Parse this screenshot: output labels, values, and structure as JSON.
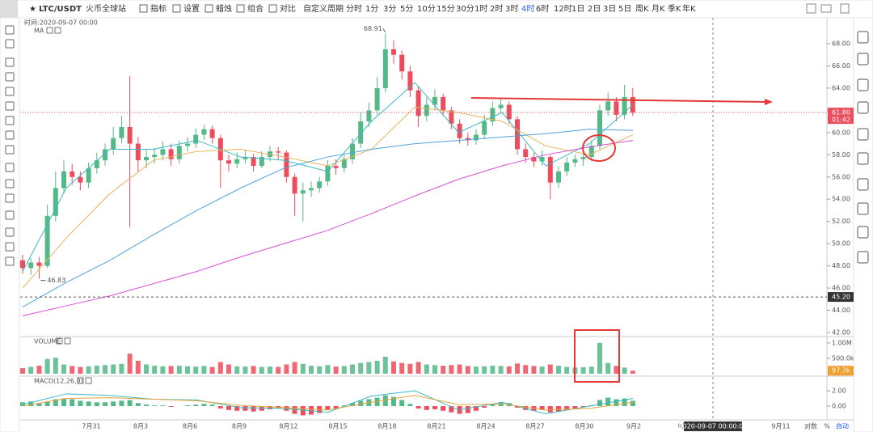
{
  "toolbar": {
    "symbol": "LTC/USDT",
    "exchange": "火币全球站",
    "buttons": [
      "指标",
      "设置",
      "蜡烛",
      "组合",
      "对比"
    ],
    "custom": "自定义周期",
    "periods": [
      "分时",
      "1分",
      "3分",
      "5分",
      "10分",
      "15分",
      "30分",
      "1时",
      "2时",
      "3时",
      "4时",
      "6时",
      "12时",
      "1日",
      "2日",
      "3日",
      "5日",
      "周K",
      "月K",
      "季K",
      "年K"
    ],
    "active_period": 10
  },
  "chart_data": [
    {
      "type": "candlestick",
      "crosshair_time": "时间:2020-09-07 00:00",
      "title": "MA",
      "ylim": [
        41.71,
        70.33
      ],
      "yticks": [
        {
          "value": 42,
          "label": "42.00"
        },
        {
          "value": 44,
          "label": "44.00"
        },
        {
          "value": 46,
          "label": "46.00"
        },
        {
          "value": 48,
          "label": "48.00"
        },
        {
          "value": 50,
          "label": "50.00"
        },
        {
          "value": 52,
          "label": "52.00"
        },
        {
          "value": 54,
          "label": "54.00"
        },
        {
          "value": 56,
          "label": "56.00"
        },
        {
          "value": 58,
          "label": "58.00"
        },
        {
          "value": 60,
          "label": "60.00"
        },
        {
          "value": 62,
          "label": "62.00"
        },
        {
          "value": 64,
          "label": "64.00"
        },
        {
          "value": 66,
          "label": "66.00"
        },
        {
          "value": 68,
          "label": "68.00"
        }
      ],
      "up_color": "#53b987",
      "down_color": "#eb4d5c",
      "ohlc": [
        [
          48.5,
          49.0,
          47.3,
          47.8
        ],
        [
          47.8,
          48.7,
          47.2,
          48.3
        ],
        [
          48.3,
          48.8,
          46.83,
          48.0
        ],
        [
          48.0,
          53.5,
          47.8,
          52.5
        ],
        [
          52.5,
          56.5,
          52.0,
          55.0
        ],
        [
          55.0,
          57.5,
          54.5,
          56.5
        ],
        [
          56.5,
          57.2,
          55.3,
          56.0
        ],
        [
          56.0,
          56.5,
          54.8,
          55.5
        ],
        [
          55.5,
          57.3,
          55.0,
          56.8
        ],
        [
          56.8,
          58.2,
          56.3,
          57.5
        ],
        [
          57.5,
          59.0,
          57.0,
          58.5
        ],
        [
          58.5,
          60.5,
          58.0,
          59.5
        ],
        [
          59.5,
          61.5,
          59.0,
          60.5
        ],
        [
          60.5,
          65.1,
          51.5,
          59.0
        ],
        [
          59.0,
          59.6,
          56.5,
          57.5
        ],
        [
          57.5,
          58.5,
          56.8,
          57.8
        ],
        [
          57.8,
          58.6,
          57.2,
          58.0
        ],
        [
          58.0,
          59.2,
          57.5,
          58.5
        ],
        [
          58.5,
          59.0,
          57.0,
          57.6
        ],
        [
          57.6,
          59.3,
          57.2,
          58.8
        ],
        [
          58.8,
          59.6,
          58.3,
          59.0
        ],
        [
          59.0,
          60.4,
          58.6,
          59.8
        ],
        [
          59.8,
          60.7,
          59.3,
          60.3
        ],
        [
          60.3,
          60.6,
          59.0,
          59.5
        ],
        [
          59.5,
          59.8,
          55.0,
          57.5
        ],
        [
          57.5,
          58.0,
          56.5,
          57.2
        ],
        [
          57.2,
          58.2,
          56.8,
          57.6
        ],
        [
          57.6,
          58.4,
          57.2,
          57.8
        ],
        [
          57.8,
          58.1,
          56.5,
          57.0
        ],
        [
          57.0,
          58.3,
          56.8,
          57.8
        ],
        [
          57.8,
          58.8,
          57.4,
          58.3
        ],
        [
          58.3,
          58.7,
          57.6,
          58.2
        ],
        [
          58.2,
          58.4,
          55.5,
          56.0
        ],
        [
          56.0,
          56.3,
          52.5,
          54.5
        ],
        [
          54.5,
          55.5,
          52.0,
          54.8
        ],
        [
          54.8,
          55.6,
          54.2,
          55.0
        ],
        [
          55.0,
          56.0,
          54.6,
          55.6
        ],
        [
          55.6,
          57.5,
          55.2,
          57.0
        ],
        [
          57.0,
          57.6,
          56.2,
          56.8
        ],
        [
          56.8,
          58.0,
          56.4,
          57.6
        ],
        [
          57.6,
          59.5,
          57.2,
          59.0
        ],
        [
          59.0,
          61.8,
          58.6,
          61.0
        ],
        [
          61.0,
          62.7,
          60.5,
          62.0
        ],
        [
          62.0,
          65.0,
          61.6,
          64.0
        ],
        [
          64.0,
          68.91,
          63.6,
          67.5
        ],
        [
          67.5,
          68.3,
          66.2,
          67.0
        ],
        [
          67.0,
          67.4,
          64.8,
          65.5
        ],
        [
          65.5,
          66.0,
          63.2,
          63.8
        ],
        [
          63.8,
          64.2,
          60.5,
          61.5
        ],
        [
          61.5,
          63.2,
          61.0,
          62.5
        ],
        [
          62.5,
          63.9,
          62.0,
          63.2
        ],
        [
          63.2,
          63.5,
          61.5,
          62.0
        ],
        [
          62.0,
          62.3,
          60.3,
          60.8
        ],
        [
          60.8,
          61.2,
          59.0,
          59.5
        ],
        [
          59.5,
          60.0,
          58.8,
          59.3
        ],
        [
          59.3,
          60.3,
          58.9,
          59.8
        ],
        [
          59.8,
          61.6,
          59.4,
          61.0
        ],
        [
          61.0,
          62.8,
          60.6,
          62.2
        ],
        [
          62.2,
          63.1,
          61.8,
          62.5
        ],
        [
          62.5,
          62.8,
          60.8,
          61.2
        ],
        [
          61.2,
          61.5,
          58.0,
          58.5
        ],
        [
          58.5,
          59.0,
          57.3,
          57.8
        ],
        [
          57.8,
          58.2,
          56.9,
          57.4
        ],
        [
          57.4,
          58.4,
          57.0,
          57.8
        ],
        [
          57.8,
          58.0,
          54.0,
          55.5
        ],
        [
          55.5,
          57.0,
          55.0,
          56.5
        ],
        [
          56.5,
          57.8,
          56.1,
          57.3
        ],
        [
          57.3,
          58.0,
          56.9,
          57.6
        ],
        [
          57.6,
          58.2,
          57.0,
          57.8
        ],
        [
          57.8,
          59.3,
          57.4,
          58.8
        ],
        [
          58.8,
          62.5,
          58.5,
          62.0
        ],
        [
          62.0,
          63.6,
          61.5,
          62.8
        ],
        [
          62.8,
          63.2,
          61.0,
          61.6
        ],
        [
          61.6,
          64.3,
          61.2,
          63.2
        ],
        [
          63.2,
          64.0,
          61.5,
          61.8
        ]
      ],
      "lines": [
        {
          "color": "#3bb8c3",
          "values": [
            47.5,
            55.0,
            58.5,
            58.5,
            59.3,
            57.8,
            57.5,
            56.5,
            61.0,
            64.5,
            60.0,
            61.8,
            57.0,
            59.0,
            62.5
          ]
        },
        {
          "color": "#e8b35a",
          "values": [
            46.0,
            50.5,
            54.5,
            57.5,
            58.3,
            58.5,
            57.8,
            57.0,
            58.5,
            62.3,
            61.8,
            61.0,
            58.8,
            58.0,
            59.8
          ]
        },
        {
          "color": "#4fa3d6",
          "values": [
            44.3,
            46.5,
            48.5,
            50.8,
            53.0,
            55.0,
            56.8,
            57.8,
            58.5,
            59.0,
            59.3,
            59.6,
            59.9,
            60.3,
            60.2
          ]
        },
        {
          "color": "#d94fd6",
          "values": [
            43.5,
            44.4,
            45.3,
            46.4,
            47.5,
            48.8,
            50.0,
            51.2,
            52.7,
            54.3,
            55.8,
            57.0,
            58.0,
            58.7,
            59.3
          ]
        }
      ],
      "high_mark": 68.91,
      "low_mark": 46.83,
      "current": {
        "value": 61.8,
        "label": "61.80"
      },
      "countdown": "01:42",
      "crosshair": {
        "value": 45.2,
        "label": "45.20"
      }
    },
    {
      "type": "bar",
      "title": "VOLUME",
      "ylim": [
        -80000,
        1180000
      ],
      "yticks": [
        {
          "value": 1000000,
          "label": "1.00M"
        },
        {
          "value": 500000,
          "label": "500.0k"
        }
      ],
      "values": [
        180000,
        220000,
        260000,
        480000,
        520000,
        300000,
        250000,
        220000,
        240000,
        260000,
        280000,
        300000,
        320000,
        650000,
        420000,
        300000,
        260000,
        240000,
        250000,
        260000,
        240000,
        230000,
        250000,
        220000,
        380000,
        300000,
        240000,
        230000,
        250000,
        220000,
        230000,
        220000,
        300000,
        380000,
        320000,
        260000,
        240000,
        280000,
        230000,
        250000,
        300000,
        350000,
        380000,
        420000,
        550000,
        400000,
        350000,
        320000,
        380000,
        300000,
        280000,
        260000,
        280000,
        300000,
        250000,
        230000,
        240000,
        260000,
        250000,
        240000,
        330000,
        280000,
        250000,
        230000,
        300000,
        260000,
        220000,
        200000,
        210000,
        230000,
        1000000,
        350000,
        250000,
        200000,
        97700
      ],
      "current": {
        "value": 97700,
        "label": "97.7k"
      }
    },
    {
      "type": "macd",
      "title": "MACD(12,26,9)",
      "ylim": [
        -1.68,
        3.79
      ],
      "yticks": [
        {
          "value": 2,
          "label": "2.00"
        },
        {
          "value": 0,
          "label": "0.00"
        }
      ],
      "values": [
        0.5,
        0.6,
        0.4,
        0.6,
        0.9,
        1.0,
        0.9,
        0.7,
        0.6,
        0.5,
        0.5,
        0.6,
        0.7,
        0.8,
        0.4,
        0.2,
        0.1,
        0.1,
        -0.1,
        0.0,
        0.1,
        0.2,
        0.3,
        0.2,
        -0.3,
        -0.5,
        -0.6,
        -0.6,
        -0.7,
        -0.6,
        -0.4,
        -0.3,
        -0.6,
        -1.0,
        -1.2,
        -1.1,
        -0.9,
        -0.5,
        -0.3,
        0.1,
        0.4,
        0.7,
        0.9,
        1.1,
        1.4,
        1.2,
        0.8,
        0.3,
        -0.3,
        -0.5,
        -0.4,
        -0.6,
        -0.8,
        -1.0,
        -0.9,
        -0.6,
        -0.2,
        0.3,
        0.5,
        0.4,
        -0.2,
        -0.5,
        -0.6,
        -0.5,
        -0.8,
        -0.7,
        -0.5,
        -0.3,
        -0.1,
        0.1,
        0.8,
        1.1,
        0.9,
        1.0,
        0.7
      ],
      "lines": [
        {
          "color": "#3bb8c3",
          "values": [
            0.2,
            1.6,
            1.4,
            0.9,
            0.8,
            -0.2,
            -0.3,
            -0.8,
            1.3,
            2.0,
            -0.5,
            0.5,
            -1.0,
            0.0,
            1.0
          ]
        },
        {
          "color": "#e8a33a",
          "values": [
            0.0,
            1.0,
            1.1,
            0.9,
            0.7,
            0.1,
            -0.2,
            -0.5,
            0.5,
            1.4,
            0.2,
            0.3,
            -0.5,
            -0.3,
            0.5
          ]
        }
      ]
    }
  ],
  "time_axis": {
    "labels": [
      "7月31",
      "8月3",
      "8月6",
      "8月9",
      "8月12",
      "8月15",
      "8月18",
      "8月21",
      "8月24",
      "8月27",
      "8月30",
      "9月2",
      "9月"
    ],
    "cursor": "2020-09-07 00:00:00",
    "after": "9月11"
  },
  "footer": {
    "log": "对数",
    "percent": "%",
    "auto": "自动"
  }
}
